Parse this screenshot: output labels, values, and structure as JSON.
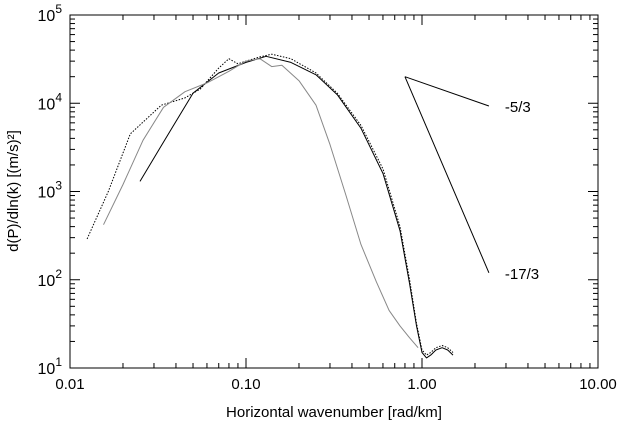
{
  "chart_data": {
    "type": "line",
    "xscale": "log",
    "yscale": "log",
    "xlim": [
      0.01,
      10.0
    ],
    "ylim": [
      10,
      100000
    ],
    "xlabel": "Horizontal wavenumber [rad/km]",
    "ylabel": "d(P)/dln(k) [(m/s)²]",
    "x_ticks": [
      {
        "value": 0.01,
        "label": "0.01"
      },
      {
        "value": 0.1,
        "label": "0.10"
      },
      {
        "value": 1.0,
        "label": "1.00"
      },
      {
        "value": 10.0,
        "label": "10.00"
      }
    ],
    "y_ticks": [
      {
        "value": 10,
        "base": "10",
        "exp": "1"
      },
      {
        "value": 100,
        "base": "10",
        "exp": "2"
      },
      {
        "value": 1000,
        "base": "10",
        "exp": "3"
      },
      {
        "value": 10000,
        "base": "10",
        "exp": "4"
      },
      {
        "value": 100000,
        "base": "10",
        "exp": "5"
      }
    ],
    "series": [
      {
        "style": "solid",
        "color": "#000000",
        "x": [
          0.025,
          0.033,
          0.05,
          0.07,
          0.1,
          0.13,
          0.18,
          0.25,
          0.33,
          0.45,
          0.6,
          0.75,
          0.85,
          0.93,
          1.0,
          1.06,
          1.12,
          1.2,
          1.3,
          1.4,
          1.5
        ],
        "y": [
          1300,
          3300,
          13000,
          22000,
          29000,
          34000,
          29000,
          21000,
          12500,
          5200,
          1600,
          360,
          90,
          30,
          15,
          13,
          14,
          16,
          17,
          16,
          14
        ]
      },
      {
        "style": "dotted",
        "color": "#000000",
        "x": [
          0.0125,
          0.0165,
          0.022,
          0.033,
          0.045,
          0.055,
          0.07,
          0.08,
          0.09,
          0.1,
          0.12,
          0.14,
          0.18,
          0.25,
          0.33,
          0.45,
          0.6,
          0.75,
          0.85,
          0.93,
          1.0,
          1.06,
          1.12,
          1.2,
          1.3,
          1.4,
          1.5
        ],
        "y": [
          290,
          1000,
          4500,
          9500,
          11500,
          14500,
          25000,
          32000,
          28000,
          30000,
          33500,
          36000,
          32000,
          22000,
          13000,
          5600,
          1800,
          400,
          100,
          32,
          16,
          14,
          15,
          17,
          18,
          17,
          15
        ]
      },
      {
        "style": "solid",
        "color": "#888888",
        "x": [
          0.0155,
          0.02,
          0.026,
          0.034,
          0.045,
          0.06,
          0.08,
          0.1,
          0.12,
          0.14,
          0.16,
          0.2,
          0.25,
          0.3,
          0.37,
          0.45,
          0.55,
          0.65,
          0.75,
          0.85,
          0.95
        ],
        "y": [
          420,
          1200,
          3800,
          9000,
          13500,
          17000,
          23000,
          30000,
          32000,
          26000,
          27000,
          18000,
          9500,
          3400,
          900,
          250,
          95,
          45,
          30,
          22,
          17
        ]
      }
    ],
    "reference_slopes": [
      {
        "label": "-5/3",
        "x": [
          0.8,
          2.4
        ],
        "y": [
          20000,
          9300
        ]
      },
      {
        "label": "-17/3",
        "x": [
          0.8,
          2.4
        ],
        "y": [
          20000,
          120
        ]
      }
    ]
  }
}
